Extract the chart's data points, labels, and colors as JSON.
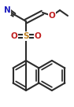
{
  "bond_color": "#2d2d2d",
  "atom_colors": {
    "N": "#2020c0",
    "O": "#c02020",
    "S": "#c08020",
    "C": "#2d2d2d"
  },
  "bond_width": 1.5,
  "font_size_atom": 7.5
}
